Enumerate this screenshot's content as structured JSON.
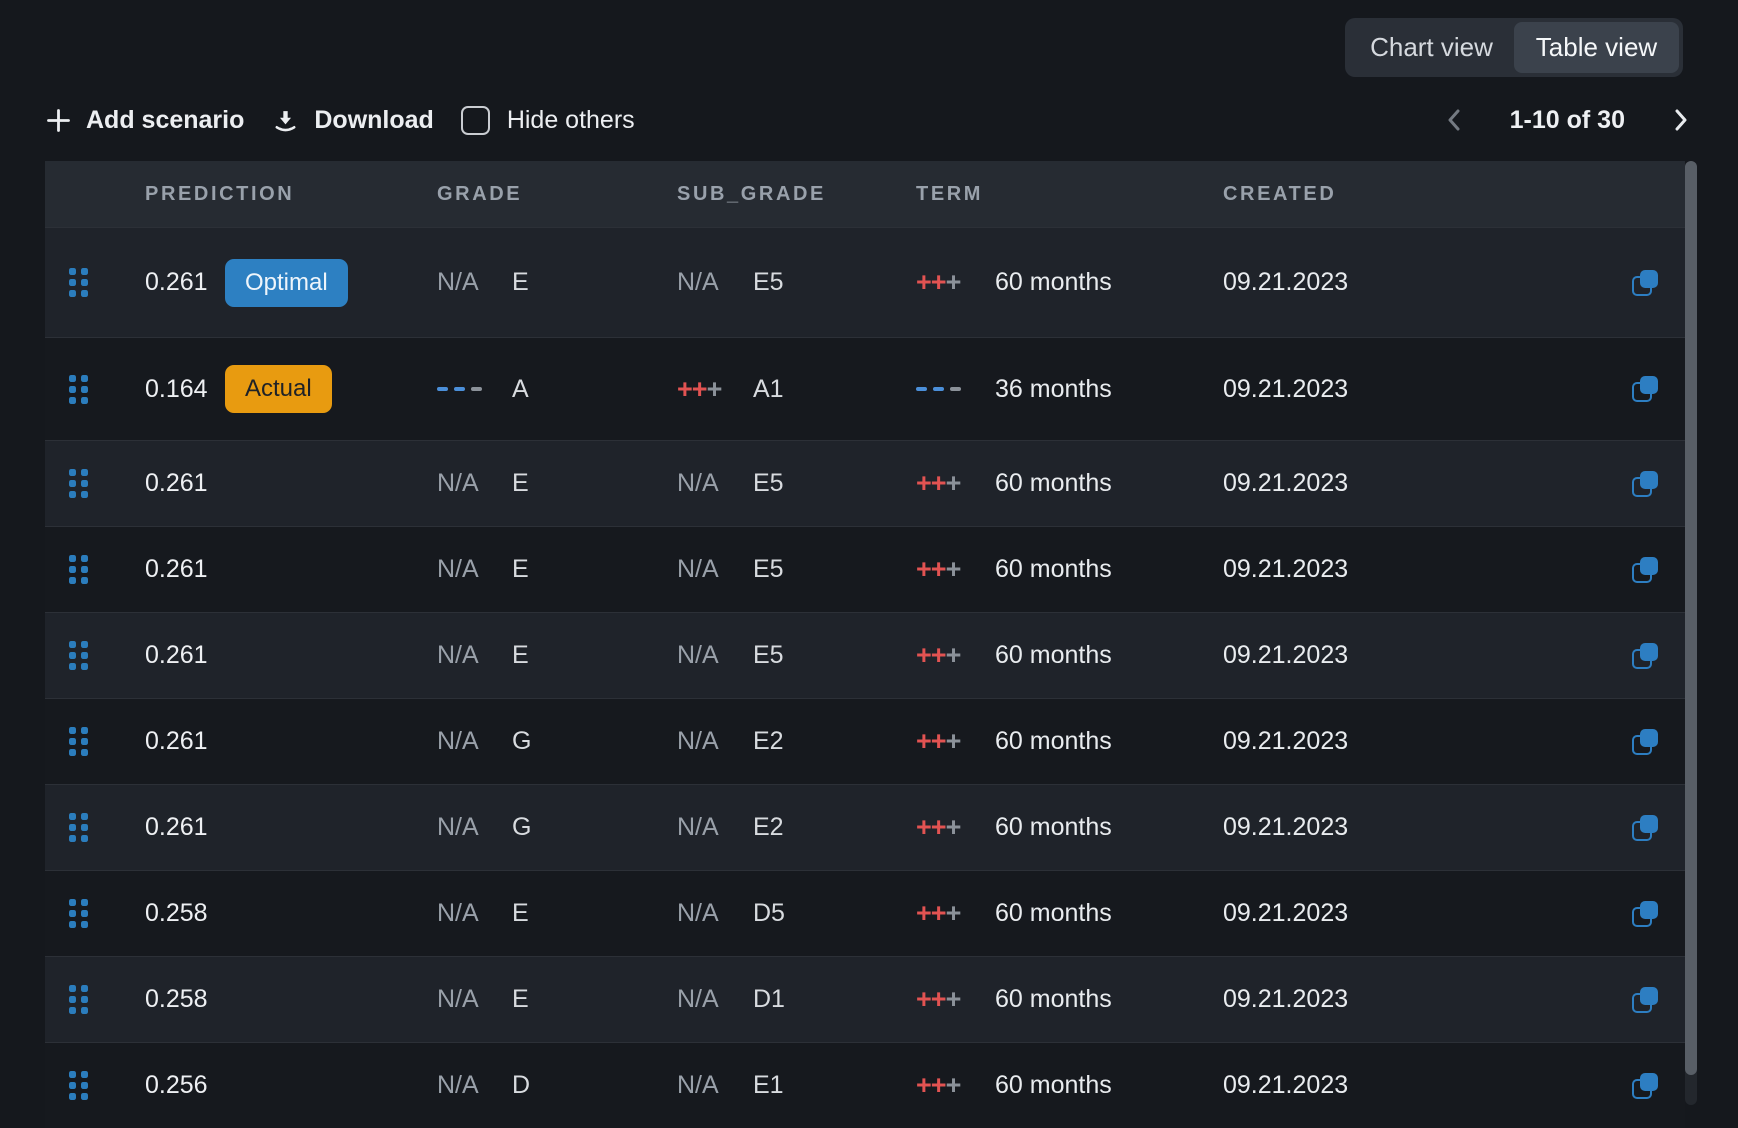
{
  "view_toggle": {
    "options": [
      {
        "label": "Chart view",
        "active": false
      },
      {
        "label": "Table view",
        "active": true
      }
    ]
  },
  "toolbar": {
    "add_scenario": "Add scenario",
    "download": "Download",
    "hide_others": "Hide others",
    "hide_others_checked": false
  },
  "pagination": {
    "range_label": "1-10 of 30"
  },
  "table": {
    "columns": [
      "PREDICTION",
      "GRADE",
      "SUB_GRADE",
      "TERM",
      "CREATED"
    ],
    "na_label": "N/A",
    "rows": [
      {
        "prediction": "0.261",
        "badge": {
          "label": "Optimal",
          "type": "optimal"
        },
        "grade_indicator": "na",
        "grade": "E",
        "sub_grade_indicator": "na",
        "sub_grade": "E5",
        "term_indicator": "plus",
        "term": "60 months",
        "created": "09.21.2023"
      },
      {
        "prediction": "0.164",
        "badge": {
          "label": "Actual",
          "type": "actual"
        },
        "grade_indicator": "minus",
        "grade": "A",
        "sub_grade_indicator": "plus",
        "sub_grade": "A1",
        "term_indicator": "minus",
        "term": "36 months",
        "created": "09.21.2023"
      },
      {
        "prediction": "0.261",
        "badge": null,
        "grade_indicator": "na",
        "grade": "E",
        "sub_grade_indicator": "na",
        "sub_grade": "E5",
        "term_indicator": "plus",
        "term": "60 months",
        "created": "09.21.2023"
      },
      {
        "prediction": "0.261",
        "badge": null,
        "grade_indicator": "na",
        "grade": "E",
        "sub_grade_indicator": "na",
        "sub_grade": "E5",
        "term_indicator": "plus",
        "term": "60 months",
        "created": "09.21.2023"
      },
      {
        "prediction": "0.261",
        "badge": null,
        "grade_indicator": "na",
        "grade": "E",
        "sub_grade_indicator": "na",
        "sub_grade": "E5",
        "term_indicator": "plus",
        "term": "60 months",
        "created": "09.21.2023"
      },
      {
        "prediction": "0.261",
        "badge": null,
        "grade_indicator": "na",
        "grade": "G",
        "sub_grade_indicator": "na",
        "sub_grade": "E2",
        "term_indicator": "plus",
        "term": "60 months",
        "created": "09.21.2023"
      },
      {
        "prediction": "0.261",
        "badge": null,
        "grade_indicator": "na",
        "grade": "G",
        "sub_grade_indicator": "na",
        "sub_grade": "E2",
        "term_indicator": "plus",
        "term": "60 months",
        "created": "09.21.2023"
      },
      {
        "prediction": "0.258",
        "badge": null,
        "grade_indicator": "na",
        "grade": "E",
        "sub_grade_indicator": "na",
        "sub_grade": "D5",
        "term_indicator": "plus",
        "term": "60 months",
        "created": "09.21.2023"
      },
      {
        "prediction": "0.258",
        "badge": null,
        "grade_indicator": "na",
        "grade": "E",
        "sub_grade_indicator": "na",
        "sub_grade": "D1",
        "term_indicator": "plus",
        "term": "60 months",
        "created": "09.21.2023"
      },
      {
        "prediction": "0.256",
        "badge": null,
        "grade_indicator": "na",
        "grade": "D",
        "sub_grade_indicator": "na",
        "sub_grade": "E1",
        "term_indicator": "plus",
        "term": "60 months",
        "created": "09.21.2023"
      }
    ]
  },
  "colors": {
    "optimal_badge": "#2d80c2",
    "actual_badge": "#e89b10",
    "accent_blue": "#2b7dbd",
    "increase_red": "#e25352",
    "decrease_blue": "#4b8fd9",
    "muted_grey": "#8b9199",
    "header_bg": "#262b32",
    "row_odd_bg": "#1f232a",
    "row_even_bg": "#16191e"
  }
}
